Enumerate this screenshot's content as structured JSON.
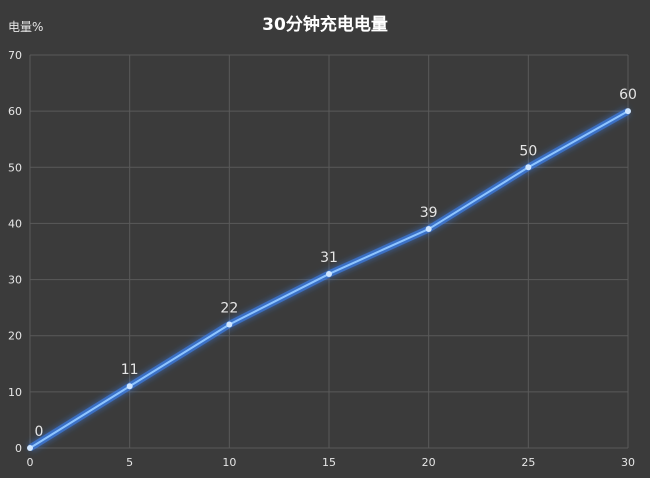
{
  "chart_data": {
    "type": "line",
    "title": "30分钟充电电量",
    "ylabel": "电量%",
    "xlabel": "",
    "x": [
      0,
      5,
      10,
      15,
      20,
      25,
      30
    ],
    "series": [
      {
        "values": [
          0,
          11,
          22,
          31,
          39,
          50,
          60
        ]
      }
    ],
    "xlim": [
      0,
      30
    ],
    "ylim": [
      0,
      70
    ],
    "xticks": [
      0,
      5,
      10,
      15,
      20,
      25,
      30
    ],
    "yticks": [
      0,
      10,
      20,
      30,
      40,
      50,
      60,
      70
    ],
    "grid": true,
    "data_labels": true,
    "colors": {
      "background": "#3b3b3b",
      "line": "#8ec5ff",
      "glow": "#3d86ff",
      "grid": "#5a5a5a",
      "text": "#e6e6e6"
    }
  }
}
